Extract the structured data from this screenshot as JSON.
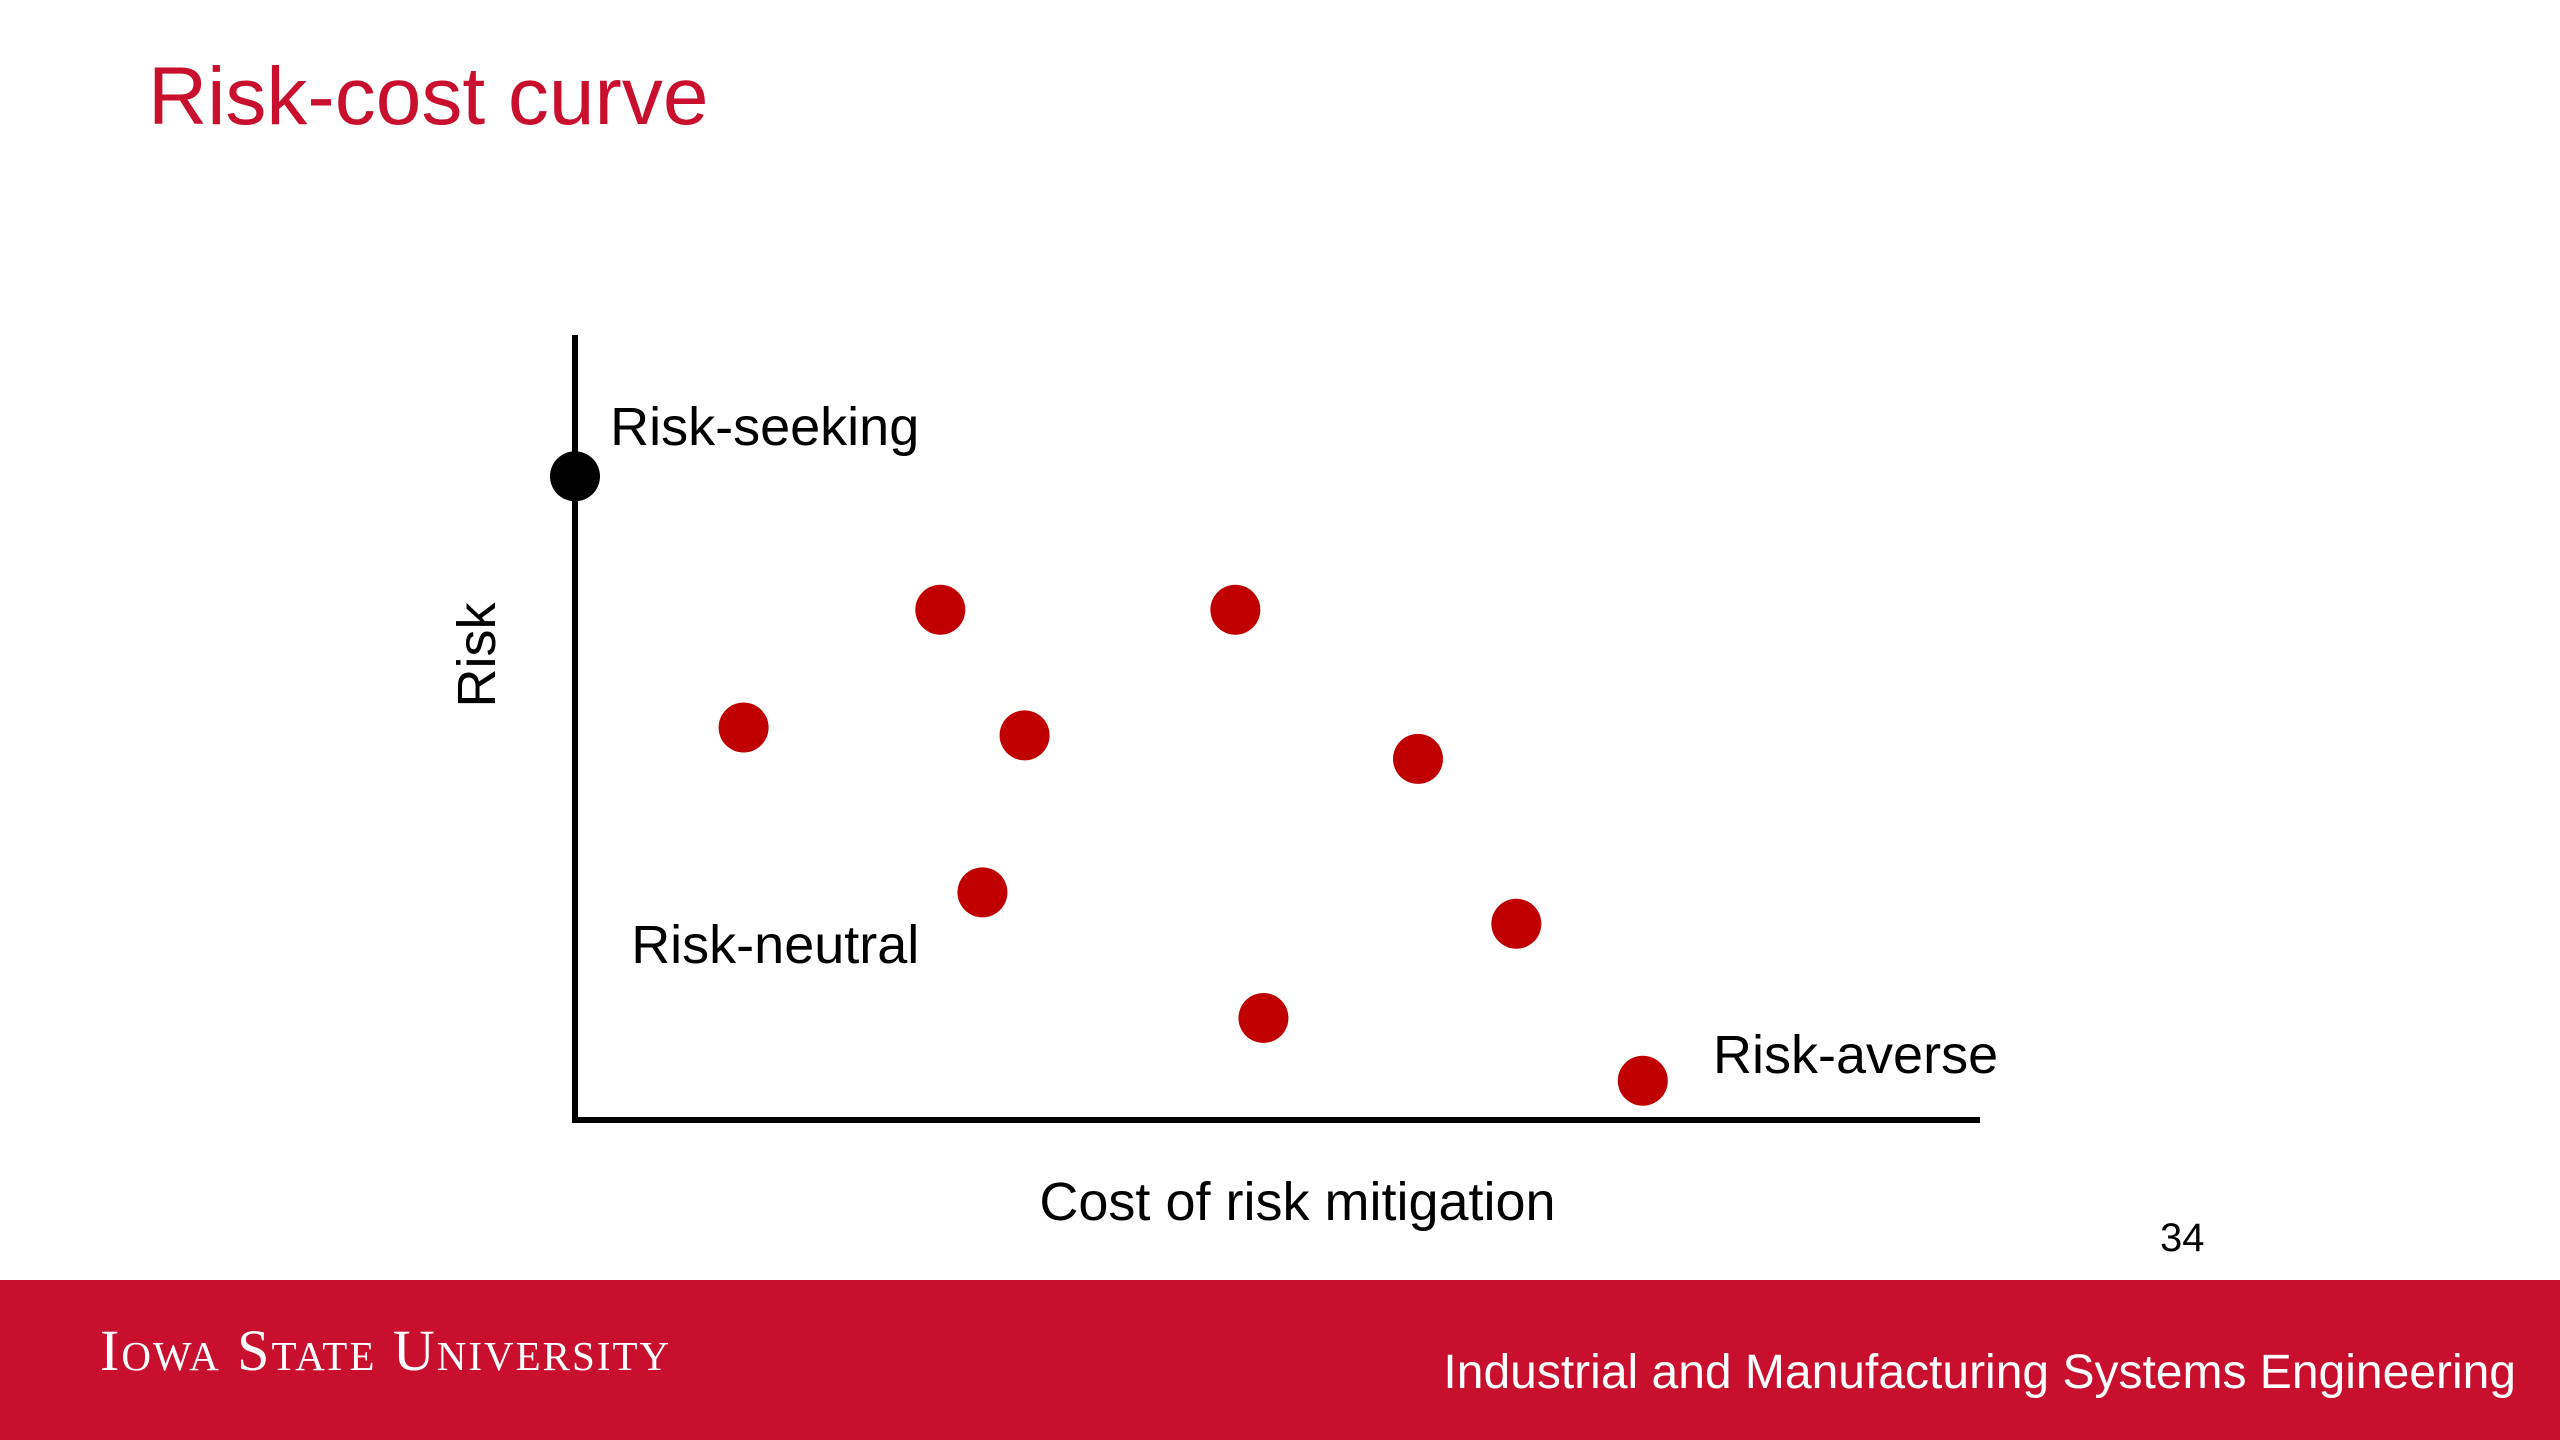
{
  "slide": {
    "title": "Risk-cost curve",
    "page_number": "34"
  },
  "footer": {
    "logo_text": "Iowa State University",
    "department": "Industrial and Manufacturing Systems Engineering",
    "bar_color": "#c8102e"
  },
  "colors": {
    "accent": "#c8102e",
    "marker_red": "#c00000",
    "marker_black": "#000000"
  },
  "chart_data": {
    "type": "scatter",
    "title": "",
    "xlabel": "Cost of risk mitigation",
    "ylabel": "Risk",
    "xlim": [
      0,
      10
    ],
    "ylim": [
      0,
      10
    ],
    "grid": false,
    "ticks": false,
    "series": [
      {
        "name": "",
        "color": "#c00000",
        "points": [
          {
            "x": 1.2,
            "y": 5.0
          },
          {
            "x": 2.6,
            "y": 6.5
          },
          {
            "x": 3.2,
            "y": 4.9
          },
          {
            "x": 2.9,
            "y": 2.9
          },
          {
            "x": 4.7,
            "y": 6.5
          },
          {
            "x": 6.0,
            "y": 4.6
          },
          {
            "x": 6.7,
            "y": 2.5
          },
          {
            "x": 4.9,
            "y": 1.3
          },
          {
            "x": 7.6,
            "y": 0.5
          }
        ]
      },
      {
        "name": "",
        "color": "#000000",
        "points": [
          {
            "x": 0.0,
            "y": 8.2
          }
        ]
      }
    ],
    "annotations": [
      {
        "text": "Risk-seeking",
        "x": 0.25,
        "y": 8.6
      },
      {
        "text": "Risk-neutral",
        "x": 0.4,
        "y": 2.0
      },
      {
        "text": "Risk-averse",
        "x": 8.1,
        "y": 0.6
      }
    ]
  }
}
